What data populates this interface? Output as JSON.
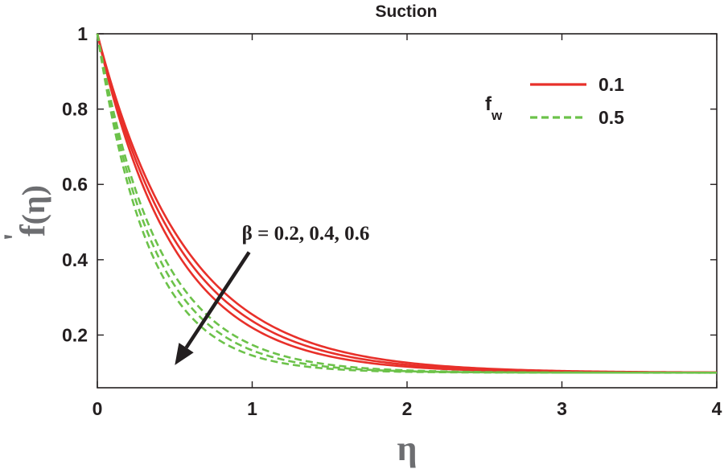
{
  "chart_data": {
    "type": "line",
    "title": "Suction",
    "xlabel": "η",
    "ylabel_main": "f",
    "ylabel_prime": "'",
    "ylabel_arg": "(η)",
    "xlim": [
      0,
      4
    ],
    "ylim": [
      0.06,
      1.0
    ],
    "xticks": [
      0,
      1,
      2,
      3,
      4
    ],
    "yticks": [
      0.2,
      0.4,
      0.6,
      0.8,
      1
    ],
    "xtick_labels": [
      "0",
      "1",
      "2",
      "3",
      "4"
    ],
    "ytick_labels": [
      "0.2",
      "0.4",
      "0.6",
      "0.8",
      "1"
    ],
    "legend": {
      "title_main": "f",
      "title_sub": "w",
      "placement": "top-right",
      "entries": [
        {
          "label": "0.1",
          "color": "#e8302a",
          "style": "solid"
        },
        {
          "label": "0.5",
          "color": "#6cc24a",
          "style": "dashed"
        }
      ]
    },
    "annotation": {
      "text": "β = 0.2, 0.4, 0.6",
      "arrow_from": [
        0.98,
        0.42
      ],
      "arrow_to": [
        0.5,
        0.12
      ]
    },
    "series": [
      {
        "name": "fw=0.1, β=0.2",
        "group": "0.1",
        "color": "#e8302a",
        "style": "solid",
        "f_inf": 0.1,
        "decay": 2.02
      },
      {
        "name": "fw=0.1, β=0.4",
        "group": "0.1",
        "color": "#e8302a",
        "style": "solid",
        "f_inf": 0.1,
        "decay": 1.88
      },
      {
        "name": "fw=0.1, β=0.6",
        "group": "0.1",
        "color": "#e8302a",
        "style": "solid",
        "f_inf": 0.1,
        "decay": 1.76
      },
      {
        "name": "fw=0.5, β=0.2",
        "group": "0.5",
        "color": "#6cc24a",
        "style": "dashed",
        "f_inf": 0.1,
        "decay": 2.98
      },
      {
        "name": "fw=0.5, β=0.4",
        "group": "0.5",
        "color": "#6cc24a",
        "style": "dashed",
        "f_inf": 0.1,
        "decay": 2.72
      },
      {
        "name": "fw=0.5, β=0.6",
        "group": "0.5",
        "color": "#6cc24a",
        "style": "dashed",
        "f_inf": 0.1,
        "decay": 2.5
      }
    ]
  }
}
